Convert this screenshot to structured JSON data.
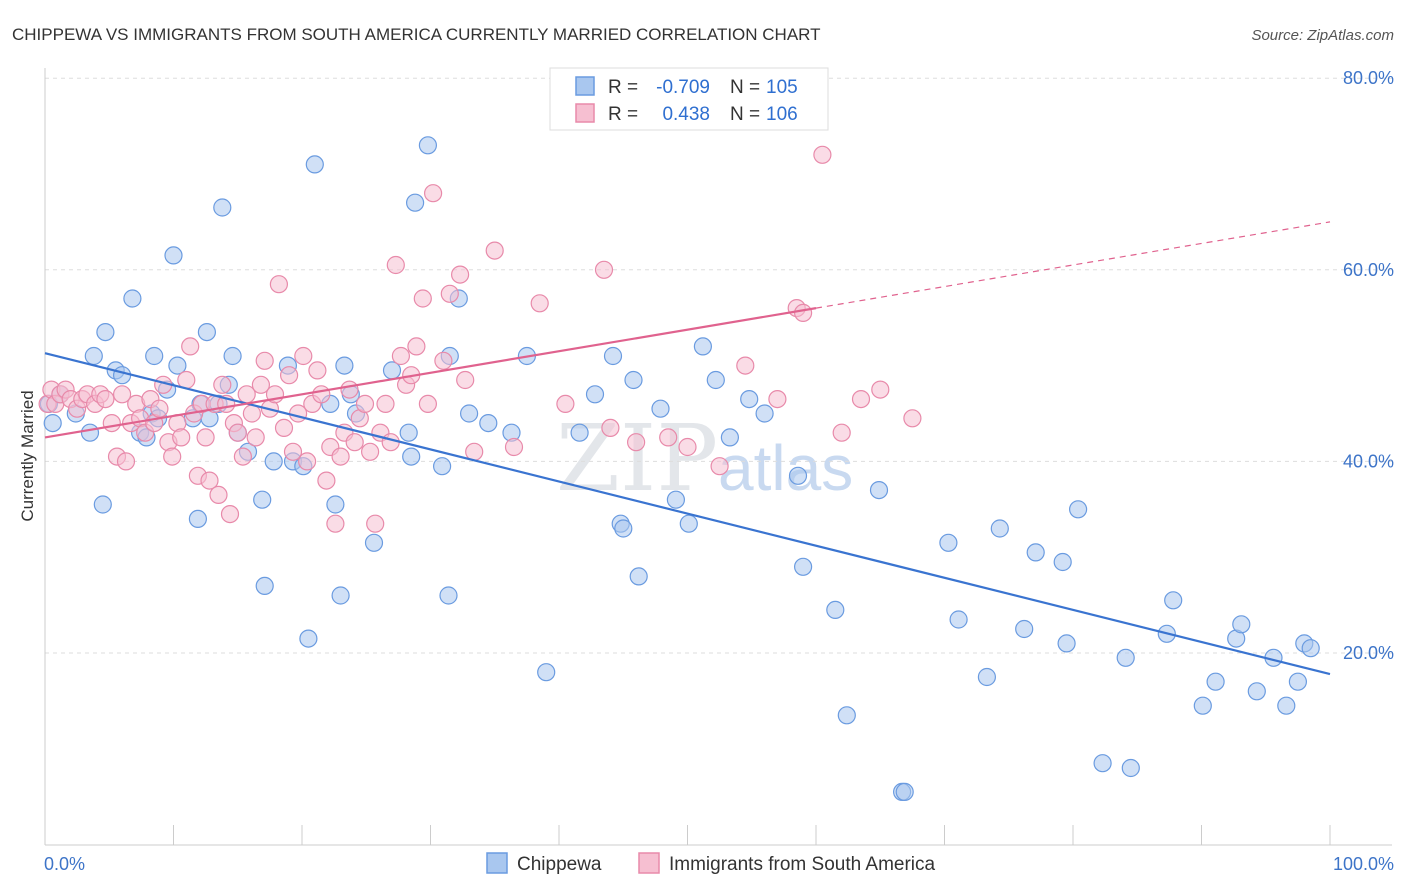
{
  "title": "CHIPPEWA VS IMMIGRANTS FROM SOUTH AMERICA CURRENTLY MARRIED CORRELATION CHART",
  "source": "Source: ZipAtlas.com",
  "colors": {
    "blue_fill": "#a9c7ef",
    "blue_stroke": "#6a9be0",
    "blue_line": "#3a74d0",
    "pink_fill": "#f6bfd1",
    "pink_stroke": "#e88aaa",
    "pink_line": "#e0628e",
    "grid": "#dddddd",
    "axis_label": "#3d74c8"
  },
  "legend": {
    "r_label": "R =",
    "n_label": "N =",
    "rows": [
      {
        "series": "Chippewa",
        "r": "-0.709",
        "n": "105"
      },
      {
        "series": "Immigrants from South America",
        "r": "0.438",
        "n": "106"
      }
    ]
  },
  "watermark": {
    "part1": "ZIP",
    "part2": "atlas"
  },
  "chart_data": {
    "type": "scatter",
    "title": "CHIPPEWA VS IMMIGRANTS FROM SOUTH AMERICA CURRENTLY MARRIED CORRELATION CHART",
    "xlabel": "",
    "ylabel": "Currently Married",
    "xlim": [
      0,
      100
    ],
    "ylim": [
      0,
      83
    ],
    "x_tick_labels": [
      "0.0%",
      "100.0%"
    ],
    "y_ticks": [
      20,
      40,
      60,
      80
    ],
    "y_tick_labels": [
      "20.0%",
      "40.0%",
      "60.0%",
      "80.0%"
    ],
    "grid": true,
    "series": [
      {
        "name": "Chippewa",
        "color": "#a9c7ef",
        "trend": {
          "x0": 0,
          "y0": 51.3,
          "x1": 100,
          "y1": 17.8,
          "dashed_to": 100
        },
        "points": [
          [
            0.3,
            46
          ],
          [
            0.6,
            44
          ],
          [
            1.2,
            47
          ],
          [
            2.4,
            45
          ],
          [
            3.5,
            43
          ],
          [
            3.8,
            51
          ],
          [
            4.5,
            35.5
          ],
          [
            4.7,
            53.5
          ],
          [
            5.5,
            49.5
          ],
          [
            6,
            49
          ],
          [
            6.8,
            57
          ],
          [
            7.4,
            43
          ],
          [
            7.9,
            42.5
          ],
          [
            8.3,
            45
          ],
          [
            8.5,
            51
          ],
          [
            8.8,
            44.5
          ],
          [
            9.5,
            47.5
          ],
          [
            10,
            61.5
          ],
          [
            10.3,
            50
          ],
          [
            11.5,
            44.5
          ],
          [
            11.9,
            34
          ],
          [
            12.1,
            46
          ],
          [
            12.6,
            53.5
          ],
          [
            12.8,
            44.5
          ],
          [
            13.5,
            46
          ],
          [
            13.8,
            66.5
          ],
          [
            14.3,
            48
          ],
          [
            14.6,
            51
          ],
          [
            15,
            43
          ],
          [
            15.8,
            41
          ],
          [
            16.9,
            36
          ],
          [
            17.1,
            27
          ],
          [
            17.8,
            40
          ],
          [
            18.9,
            50
          ],
          [
            19.3,
            40
          ],
          [
            20.1,
            39.5
          ],
          [
            20.5,
            21.5
          ],
          [
            21,
            71
          ],
          [
            22.2,
            46
          ],
          [
            22.6,
            35.5
          ],
          [
            23,
            26
          ],
          [
            23.3,
            50
          ],
          [
            23.8,
            47
          ],
          [
            24.2,
            45
          ],
          [
            25.6,
            31.5
          ],
          [
            27,
            49.5
          ],
          [
            28.3,
            43
          ],
          [
            28.5,
            40.5
          ],
          [
            28.8,
            67
          ],
          [
            29.8,
            73
          ],
          [
            30.9,
            39.5
          ],
          [
            31.4,
            26
          ],
          [
            31.5,
            51
          ],
          [
            32.2,
            57
          ],
          [
            33,
            45
          ],
          [
            34.5,
            44
          ],
          [
            36.3,
            43
          ],
          [
            37.5,
            51
          ],
          [
            39,
            18
          ],
          [
            41.6,
            43
          ],
          [
            42.8,
            47
          ],
          [
            44.2,
            51
          ],
          [
            44.8,
            33.5
          ],
          [
            45,
            33
          ],
          [
            45.8,
            48.5
          ],
          [
            46.2,
            28
          ],
          [
            47.9,
            45.5
          ],
          [
            49.1,
            36
          ],
          [
            50.1,
            33.5
          ],
          [
            51.2,
            52
          ],
          [
            52.2,
            48.5
          ],
          [
            53.3,
            42.5
          ],
          [
            54.8,
            46.5
          ],
          [
            56,
            45
          ],
          [
            58.6,
            38.5
          ],
          [
            59,
            29
          ],
          [
            61.5,
            24.5
          ],
          [
            62.4,
            13.5
          ],
          [
            64.9,
            37
          ],
          [
            66.7,
            5.5
          ],
          [
            66.9,
            5.5
          ],
          [
            70.3,
            31.5
          ],
          [
            71.1,
            23.5
          ],
          [
            73.3,
            17.5
          ],
          [
            74.3,
            33
          ],
          [
            76.2,
            22.5
          ],
          [
            77.1,
            30.5
          ],
          [
            79.2,
            29.5
          ],
          [
            79.5,
            21
          ],
          [
            80.4,
            35
          ],
          [
            82.3,
            8.5
          ],
          [
            84.1,
            19.5
          ],
          [
            84.5,
            8
          ],
          [
            87.3,
            22
          ],
          [
            87.8,
            25.5
          ],
          [
            90.1,
            14.5
          ],
          [
            91.1,
            17
          ],
          [
            92.7,
            21.5
          ],
          [
            93.1,
            23
          ],
          [
            94.3,
            16
          ],
          [
            95.6,
            19.5
          ],
          [
            96.6,
            14.5
          ],
          [
            97.5,
            17
          ],
          [
            98,
            21
          ],
          [
            98.5,
            20.5
          ]
        ]
      },
      {
        "name": "Immigrants from South America",
        "color": "#f6bfd1",
        "trend": {
          "x0": 0,
          "y0": 42.5,
          "x1": 60,
          "y1": 56,
          "dashed_to": 100
        },
        "points": [
          [
            0.2,
            46
          ],
          [
            0.5,
            47.5
          ],
          [
            0.8,
            46
          ],
          [
            1.2,
            47
          ],
          [
            1.6,
            47.5
          ],
          [
            2,
            46.5
          ],
          [
            2.5,
            45.5
          ],
          [
            2.9,
            46.5
          ],
          [
            3.3,
            47
          ],
          [
            3.9,
            46
          ],
          [
            4.3,
            47
          ],
          [
            4.7,
            46.5
          ],
          [
            5.2,
            44
          ],
          [
            5.6,
            40.5
          ],
          [
            6,
            47
          ],
          [
            6.3,
            40
          ],
          [
            6.7,
            44
          ],
          [
            7.1,
            46
          ],
          [
            7.4,
            44.5
          ],
          [
            7.8,
            43
          ],
          [
            8.2,
            46.5
          ],
          [
            8.5,
            44
          ],
          [
            8.9,
            45.5
          ],
          [
            9.2,
            48
          ],
          [
            9.6,
            42
          ],
          [
            9.9,
            40.5
          ],
          [
            10.3,
            44
          ],
          [
            10.6,
            42.5
          ],
          [
            11,
            48.5
          ],
          [
            11.3,
            52
          ],
          [
            11.6,
            45
          ],
          [
            11.9,
            38.5
          ],
          [
            12.2,
            46
          ],
          [
            12.5,
            42.5
          ],
          [
            12.8,
            38
          ],
          [
            13.2,
            46
          ],
          [
            13.5,
            36.5
          ],
          [
            13.8,
            48
          ],
          [
            14.1,
            46
          ],
          [
            14.4,
            34.5
          ],
          [
            14.7,
            44
          ],
          [
            15,
            43
          ],
          [
            15.4,
            40.5
          ],
          [
            15.7,
            47
          ],
          [
            16.1,
            45
          ],
          [
            16.4,
            42.5
          ],
          [
            16.8,
            48
          ],
          [
            17.1,
            50.5
          ],
          [
            17.5,
            45.5
          ],
          [
            17.9,
            47
          ],
          [
            18.2,
            58.5
          ],
          [
            18.6,
            43.5
          ],
          [
            19,
            49
          ],
          [
            19.3,
            41
          ],
          [
            19.7,
            45
          ],
          [
            20.1,
            51
          ],
          [
            20.4,
            40
          ],
          [
            20.8,
            46
          ],
          [
            21.2,
            49.5
          ],
          [
            21.5,
            47
          ],
          [
            21.9,
            38
          ],
          [
            22.2,
            41.5
          ],
          [
            22.6,
            33.5
          ],
          [
            23,
            40.5
          ],
          [
            23.3,
            43
          ],
          [
            23.7,
            47.5
          ],
          [
            24.1,
            42
          ],
          [
            24.5,
            44.5
          ],
          [
            24.9,
            46
          ],
          [
            25.3,
            41
          ],
          [
            25.7,
            33.5
          ],
          [
            26.1,
            43
          ],
          [
            26.5,
            46
          ],
          [
            26.9,
            42
          ],
          [
            27.3,
            60.5
          ],
          [
            27.7,
            51
          ],
          [
            28.1,
            48
          ],
          [
            28.5,
            49
          ],
          [
            28.9,
            52
          ],
          [
            29.4,
            57
          ],
          [
            29.8,
            46
          ],
          [
            30.2,
            68
          ],
          [
            31,
            50.5
          ],
          [
            31.5,
            57.5
          ],
          [
            32.3,
            59.5
          ],
          [
            32.7,
            48.5
          ],
          [
            33.4,
            41
          ],
          [
            35,
            62
          ],
          [
            36.5,
            41.5
          ],
          [
            38.5,
            56.5
          ],
          [
            40.5,
            46
          ],
          [
            43.5,
            60
          ],
          [
            44,
            43.5
          ],
          [
            46,
            42
          ],
          [
            48.5,
            42.5
          ],
          [
            50,
            41.5
          ],
          [
            52.5,
            39.5
          ],
          [
            54.5,
            50
          ],
          [
            57,
            46.5
          ],
          [
            58.5,
            56
          ],
          [
            59,
            55.5
          ],
          [
            60.5,
            72
          ],
          [
            62,
            43
          ],
          [
            63.5,
            46.5
          ],
          [
            65,
            47.5
          ],
          [
            67.5,
            44.5
          ]
        ]
      }
    ]
  },
  "bottom_legend": [
    {
      "label": "Chippewa"
    },
    {
      "label": "Immigrants from South America"
    }
  ]
}
